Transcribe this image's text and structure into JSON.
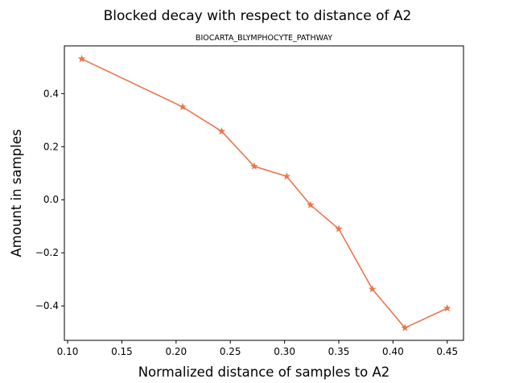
{
  "chart_data": {
    "type": "line",
    "suptitle": "Blocked decay with respect to distance of A2",
    "title": "BIOCARTA_BLYMPHOCYTE_PATHWAY",
    "xlabel": "Normalized distance of samples to A2",
    "ylabel": "Amount in samples",
    "xlim": [
      0.097,
      0.465
    ],
    "ylim": [
      -0.53,
      0.58
    ],
    "xticks": [
      0.1,
      0.15,
      0.2,
      0.25,
      0.3,
      0.35,
      0.4,
      0.45
    ],
    "xtick_labels": [
      "0.10",
      "0.15",
      "0.20",
      "0.25",
      "0.30",
      "0.35",
      "0.40",
      "0.45"
    ],
    "yticks": [
      -0.4,
      -0.2,
      0.0,
      0.2,
      0.4
    ],
    "ytick_labels": [
      "−0.4",
      "−0.2",
      "0.0",
      "0.2",
      "0.4"
    ],
    "grid": false,
    "series": [
      {
        "color": "#e8774f",
        "marker": "star",
        "x": [
          0.113,
          0.206,
          0.242,
          0.272,
          0.302,
          0.324,
          0.35,
          0.381,
          0.411,
          0.45
        ],
        "y": [
          0.531,
          0.35,
          0.258,
          0.126,
          0.088,
          -0.02,
          -0.11,
          -0.337,
          -0.483,
          -0.409
        ]
      }
    ]
  }
}
